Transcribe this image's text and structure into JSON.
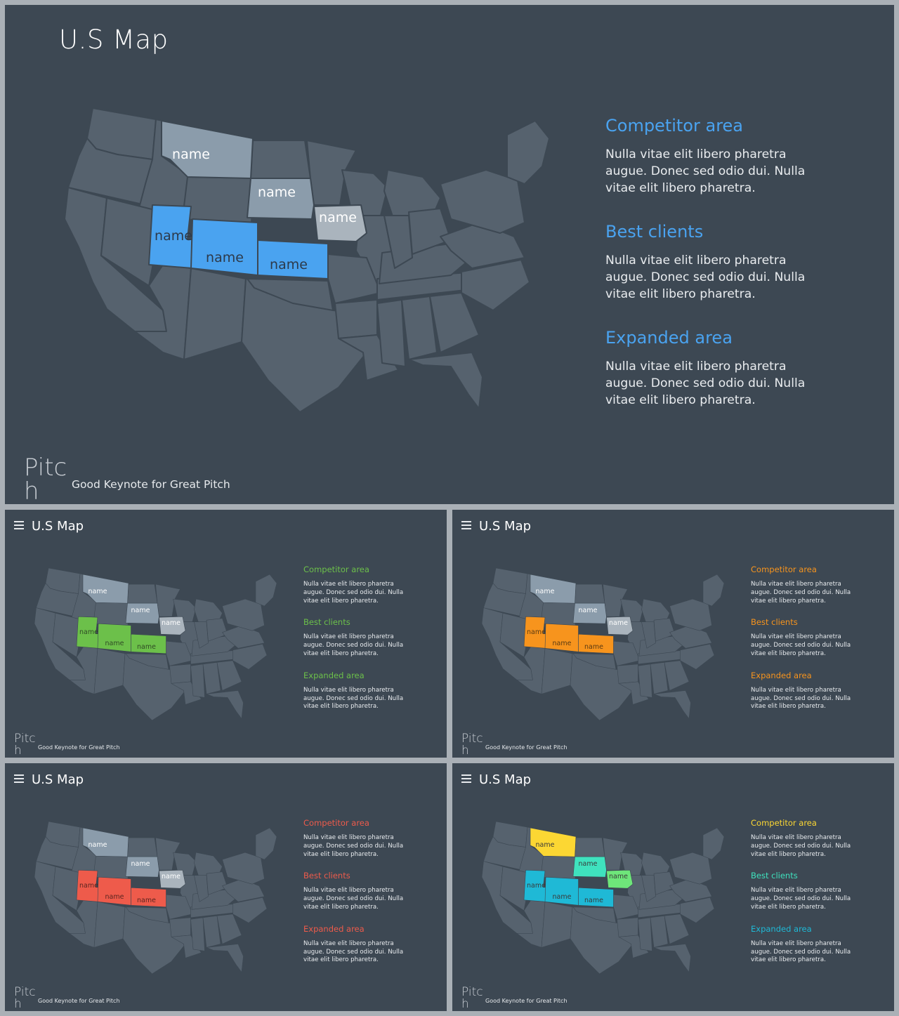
{
  "title": "U.S Map",
  "state_label": "name",
  "legend": {
    "competitor": {
      "title": "Competitor area",
      "text": "Nulla vitae elit libero pharetra augue. Donec sed odio dui. Nulla vitae elit libero pharetra."
    },
    "best": {
      "title": "Best clients",
      "text": "Nulla vitae elit libero pharetra augue. Donec sed odio dui. Nulla vitae elit libero pharetra."
    },
    "expanded": {
      "title": "Expanded area",
      "text": "Nulla vitae elit libero pharetra augue. Donec sed odio dui. Nulla vitae elit libero pharetra."
    }
  },
  "footer": {
    "brand": "Pitch",
    "tagline": "Good Keynote for Great Pitch"
  },
  "colors": {
    "background": "#3d4853",
    "base_state": "#56626e",
    "competitor_states": "#8b9cab",
    "competitor_state_iowa": "#aab4bd"
  },
  "themes": [
    {
      "id": "main",
      "accent": "#4aa3f0",
      "accent2": "#4aa3f0",
      "accent3": "#4aa3f0",
      "label_color": "#2d3a4a"
    },
    {
      "id": "green",
      "accent": "#6cc04a",
      "accent2": "#6cc04a",
      "accent3": "#6cc04a",
      "label_color": "#2f4a25"
    },
    {
      "id": "orange",
      "accent": "#f7941d",
      "accent2": "#f7941d",
      "accent3": "#f7941d",
      "label_color": "#5a3a12"
    },
    {
      "id": "red",
      "accent": "#ee5b4b",
      "accent2": "#ee5b4b",
      "accent3": "#ee5b4b",
      "label_color": "#5a2520"
    },
    {
      "id": "multi",
      "accent": "#fcd733",
      "accent2": "#3fe2be",
      "accent3": "#1fb9d6",
      "label_color": "#3a3a3a"
    }
  ]
}
